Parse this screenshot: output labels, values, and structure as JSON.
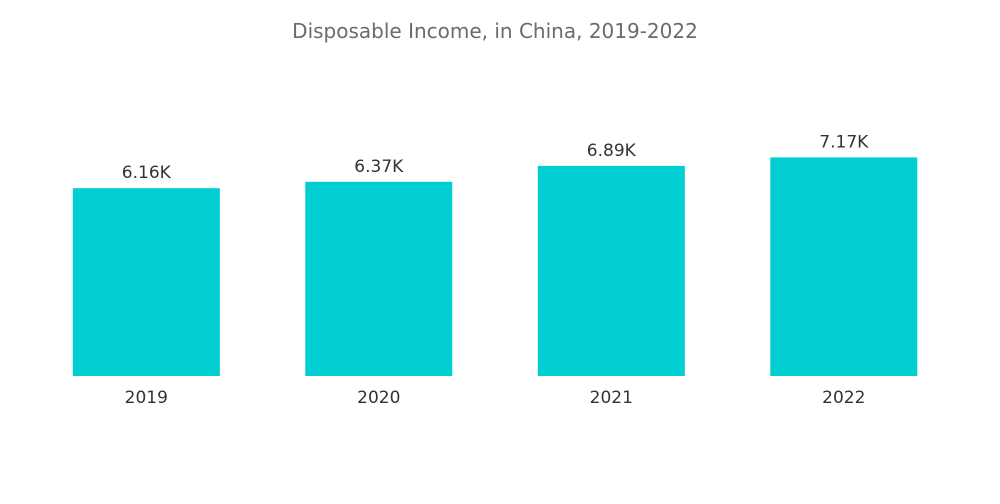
{
  "chart_data": {
    "type": "bar",
    "title": "Disposable Income, in China, 2019-2022",
    "categories": [
      "2019",
      "2020",
      "2021",
      "2022"
    ],
    "values": [
      6.16,
      6.37,
      6.89,
      7.17
    ],
    "value_labels": [
      "6.16K",
      "6.37K",
      "6.89K",
      "7.17K"
    ],
    "unit_suffix": "K",
    "xlabel": "",
    "ylabel": "",
    "ylim": [
      0,
      8.2
    ],
    "grid": false,
    "legend": "none",
    "bar_color": "#00CED1"
  }
}
